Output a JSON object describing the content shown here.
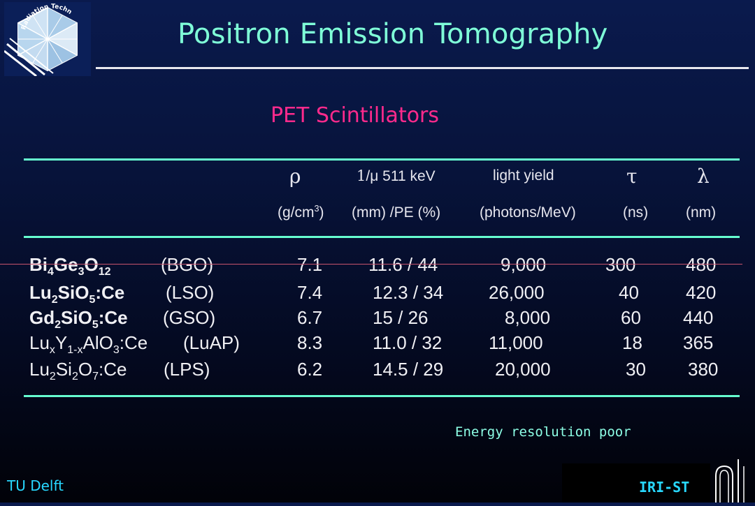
{
  "slide": {
    "title": "Positron Emission Tomography",
    "subtitle": "PET Scintillators",
    "logo": {
      "text": "Radiation Technology",
      "icon": "radiation-technology-logo"
    },
    "header": {
      "rho": "ρ",
      "attenuation": "/μ 511 keV",
      "attenuation_prefix": "1",
      "light_yield": "light yield",
      "tau": "τ",
      "lambda": "λ",
      "units": {
        "rho": "(g/cm",
        "rho_exp": "3",
        "rho_close": ")",
        "attenuation": "(mm) /PE (%)",
        "light_yield": "(photons/MeV)",
        "tau": "(ns)",
        "lambda": "(nm)"
      }
    },
    "rows": [
      {
        "formula": [
          [
            "Bi",
            ""
          ],
          [
            "4",
            "sub"
          ],
          [
            "Ge",
            ""
          ],
          [
            "3",
            "sub"
          ],
          [
            "O",
            ""
          ],
          [
            "12",
            "sub"
          ]
        ],
        "abbr": "(BGO)",
        "bold": true,
        "rho": "7.1",
        "atten": "11.6 / 44",
        "light": "9,000",
        "tau": "300",
        "lambda": "480"
      },
      {
        "formula": [
          [
            "Lu",
            ""
          ],
          [
            "2",
            "sub"
          ],
          [
            "SiO",
            ""
          ],
          [
            "5",
            "sub"
          ],
          [
            ":Ce",
            ""
          ]
        ],
        "abbr": "(LSO)",
        "bold": true,
        "rho": "7.4",
        "atten": "12.3 / 34",
        "light": "26,000",
        "tau": "40",
        "lambda": "420"
      },
      {
        "formula": [
          [
            "Gd",
            ""
          ],
          [
            "2",
            "sub"
          ],
          [
            "SiO",
            ""
          ],
          [
            "5",
            "sub"
          ],
          [
            ":Ce",
            ""
          ]
        ],
        "abbr": "(GSO)",
        "bold": true,
        "rho": "6.7",
        "atten": "15 / 26",
        "light": "8,000",
        "tau": "60",
        "lambda": "440"
      },
      {
        "formula": [
          [
            "Lu",
            ""
          ],
          [
            "x",
            "sub"
          ],
          [
            "Y",
            ""
          ],
          [
            "1-x",
            "sub"
          ],
          [
            "AlO",
            ""
          ],
          [
            "3",
            "sub"
          ],
          [
            ":Ce",
            ""
          ]
        ],
        "abbr": "(LuAP)",
        "bold": false,
        "rho": "8.3",
        "atten": "11.0 / 32",
        "light": "11,000",
        "tau": "18",
        "lambda": "365"
      },
      {
        "formula": [
          [
            "Lu",
            ""
          ],
          [
            "2",
            "sub"
          ],
          [
            "Si",
            ""
          ],
          [
            "2",
            "sub"
          ],
          [
            "O",
            ""
          ],
          [
            "7",
            "sub"
          ],
          [
            ":Ce",
            ""
          ]
        ],
        "abbr": "(LPS)",
        "bold": false,
        "rho": "6.2",
        "atten": "14.5 / 29",
        "light": "20,000",
        "tau": "30",
        "lambda": "380"
      }
    ],
    "note": "Energy resolution poor",
    "footer": {
      "left": "TU Delft",
      "right": "IRI-ST"
    },
    "colors": {
      "title": "#7fffd8",
      "subtitle": "#ff2a8c",
      "rules": "#66ffd0",
      "footer": "#28d8ff",
      "background": "#07133a"
    }
  }
}
